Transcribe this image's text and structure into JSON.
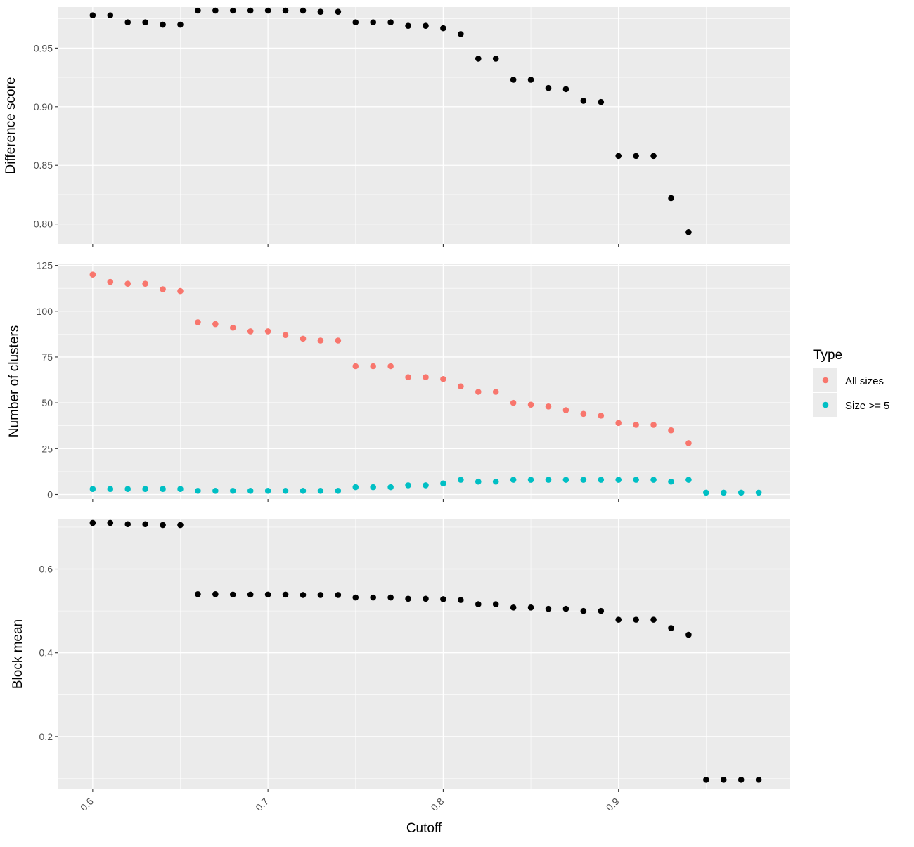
{
  "chart_data": {
    "type": "scatter",
    "xlabel": "Cutoff",
    "x_ticks": [
      "0.6",
      "0.7",
      "0.8",
      "0.9"
    ],
    "xlim": [
      0.58,
      0.998
    ],
    "legend": {
      "title": "Type",
      "placement": "right",
      "entries": [
        {
          "label": "All sizes",
          "color": "#F8766D"
        },
        {
          "label": "Size >= 5",
          "color": "#00BFC4"
        }
      ]
    },
    "panel_background": "#EBEBEB",
    "grid": true,
    "panels": [
      {
        "ylabel": "Difference score",
        "ylim": [
          0.783,
          0.985
        ],
        "y_ticks": [
          0.8,
          0.85,
          0.9,
          0.95
        ],
        "y_tick_labels": [
          "0.80",
          "0.85",
          "0.90",
          "0.95"
        ],
        "series": [
          {
            "color": "#000000",
            "x": [
              0.6,
              0.61,
              0.62,
              0.63,
              0.64,
              0.65,
              0.66,
              0.67,
              0.68,
              0.69,
              0.7,
              0.71,
              0.72,
              0.73,
              0.74,
              0.75,
              0.76,
              0.77,
              0.78,
              0.79,
              0.8,
              0.81,
              0.82,
              0.83,
              0.84,
              0.85,
              0.86,
              0.87,
              0.88,
              0.89,
              0.9,
              0.91,
              0.92,
              0.93,
              0.94
            ],
            "y": [
              0.978,
              0.978,
              0.972,
              0.972,
              0.97,
              0.97,
              0.982,
              0.982,
              0.982,
              0.982,
              0.982,
              0.982,
              0.982,
              0.981,
              0.981,
              0.972,
              0.972,
              0.972,
              0.969,
              0.969,
              0.967,
              0.962,
              0.941,
              0.941,
              0.923,
              0.923,
              0.916,
              0.915,
              0.905,
              0.904,
              0.858,
              0.858,
              0.858,
              0.822,
              0.793
            ]
          }
        ]
      },
      {
        "ylabel": "Number of clusters",
        "ylim": [
          -2.5,
          126
        ],
        "y_ticks": [
          0,
          25,
          50,
          75,
          100,
          125
        ],
        "y_tick_labels": [
          "0",
          "25",
          "50",
          "75",
          "100",
          "125"
        ],
        "series": [
          {
            "name": "All sizes",
            "color": "#F8766D",
            "x": [
              0.6,
              0.61,
              0.62,
              0.63,
              0.64,
              0.65,
              0.66,
              0.67,
              0.68,
              0.69,
              0.7,
              0.71,
              0.72,
              0.73,
              0.74,
              0.75,
              0.76,
              0.77,
              0.78,
              0.79,
              0.8,
              0.81,
              0.82,
              0.83,
              0.84,
              0.85,
              0.86,
              0.87,
              0.88,
              0.89,
              0.9,
              0.91,
              0.92,
              0.93,
              0.94
            ],
            "y": [
              120,
              116,
              115,
              115,
              112,
              111,
              94,
              93,
              91,
              89,
              89,
              87,
              85,
              84,
              84,
              70,
              70,
              70,
              64,
              64,
              63,
              59,
              56,
              56,
              50,
              49,
              48,
              46,
              44,
              43,
              39,
              38,
              38,
              35,
              28
            ]
          },
          {
            "name": "Size >= 5",
            "color": "#00BFC4",
            "x": [
              0.6,
              0.61,
              0.62,
              0.63,
              0.64,
              0.65,
              0.66,
              0.67,
              0.68,
              0.69,
              0.7,
              0.71,
              0.72,
              0.73,
              0.74,
              0.75,
              0.76,
              0.77,
              0.78,
              0.79,
              0.8,
              0.81,
              0.82,
              0.83,
              0.84,
              0.85,
              0.86,
              0.87,
              0.88,
              0.89,
              0.9,
              0.91,
              0.92,
              0.93,
              0.94,
              0.95,
              0.96,
              0.97,
              0.98
            ],
            "y": [
              3,
              3,
              3,
              3,
              3,
              3,
              2,
              2,
              2,
              2,
              2,
              2,
              2,
              2,
              2,
              4,
              4,
              4,
              5,
              5,
              6,
              8,
              7,
              7,
              8,
              8,
              8,
              8,
              8,
              8,
              8,
              8,
              8,
              7,
              8,
              1,
              1,
              1,
              1
            ]
          }
        ]
      },
      {
        "ylabel": "Block mean",
        "ylim": [
          0.074,
          0.72
        ],
        "y_ticks": [
          0.2,
          0.4,
          0.6
        ],
        "y_tick_labels": [
          "0.2",
          "0.4",
          "0.6"
        ],
        "series": [
          {
            "color": "#000000",
            "x": [
              0.6,
              0.61,
              0.62,
              0.63,
              0.64,
              0.65,
              0.66,
              0.67,
              0.68,
              0.69,
              0.7,
              0.71,
              0.72,
              0.73,
              0.74,
              0.75,
              0.76,
              0.77,
              0.78,
              0.79,
              0.8,
              0.81,
              0.82,
              0.83,
              0.84,
              0.85,
              0.86,
              0.87,
              0.88,
              0.89,
              0.9,
              0.91,
              0.92,
              0.93,
              0.94,
              0.95,
              0.96,
              0.97,
              0.98
            ],
            "y": [
              0.71,
              0.71,
              0.707,
              0.707,
              0.705,
              0.705,
              0.54,
              0.54,
              0.539,
              0.539,
              0.539,
              0.539,
              0.538,
              0.538,
              0.538,
              0.532,
              0.532,
              0.532,
              0.529,
              0.529,
              0.528,
              0.526,
              0.516,
              0.516,
              0.508,
              0.508,
              0.505,
              0.505,
              0.5,
              0.5,
              0.479,
              0.479,
              0.479,
              0.459,
              0.443,
              0.097,
              0.097,
              0.097,
              0.097
            ]
          }
        ]
      }
    ]
  }
}
